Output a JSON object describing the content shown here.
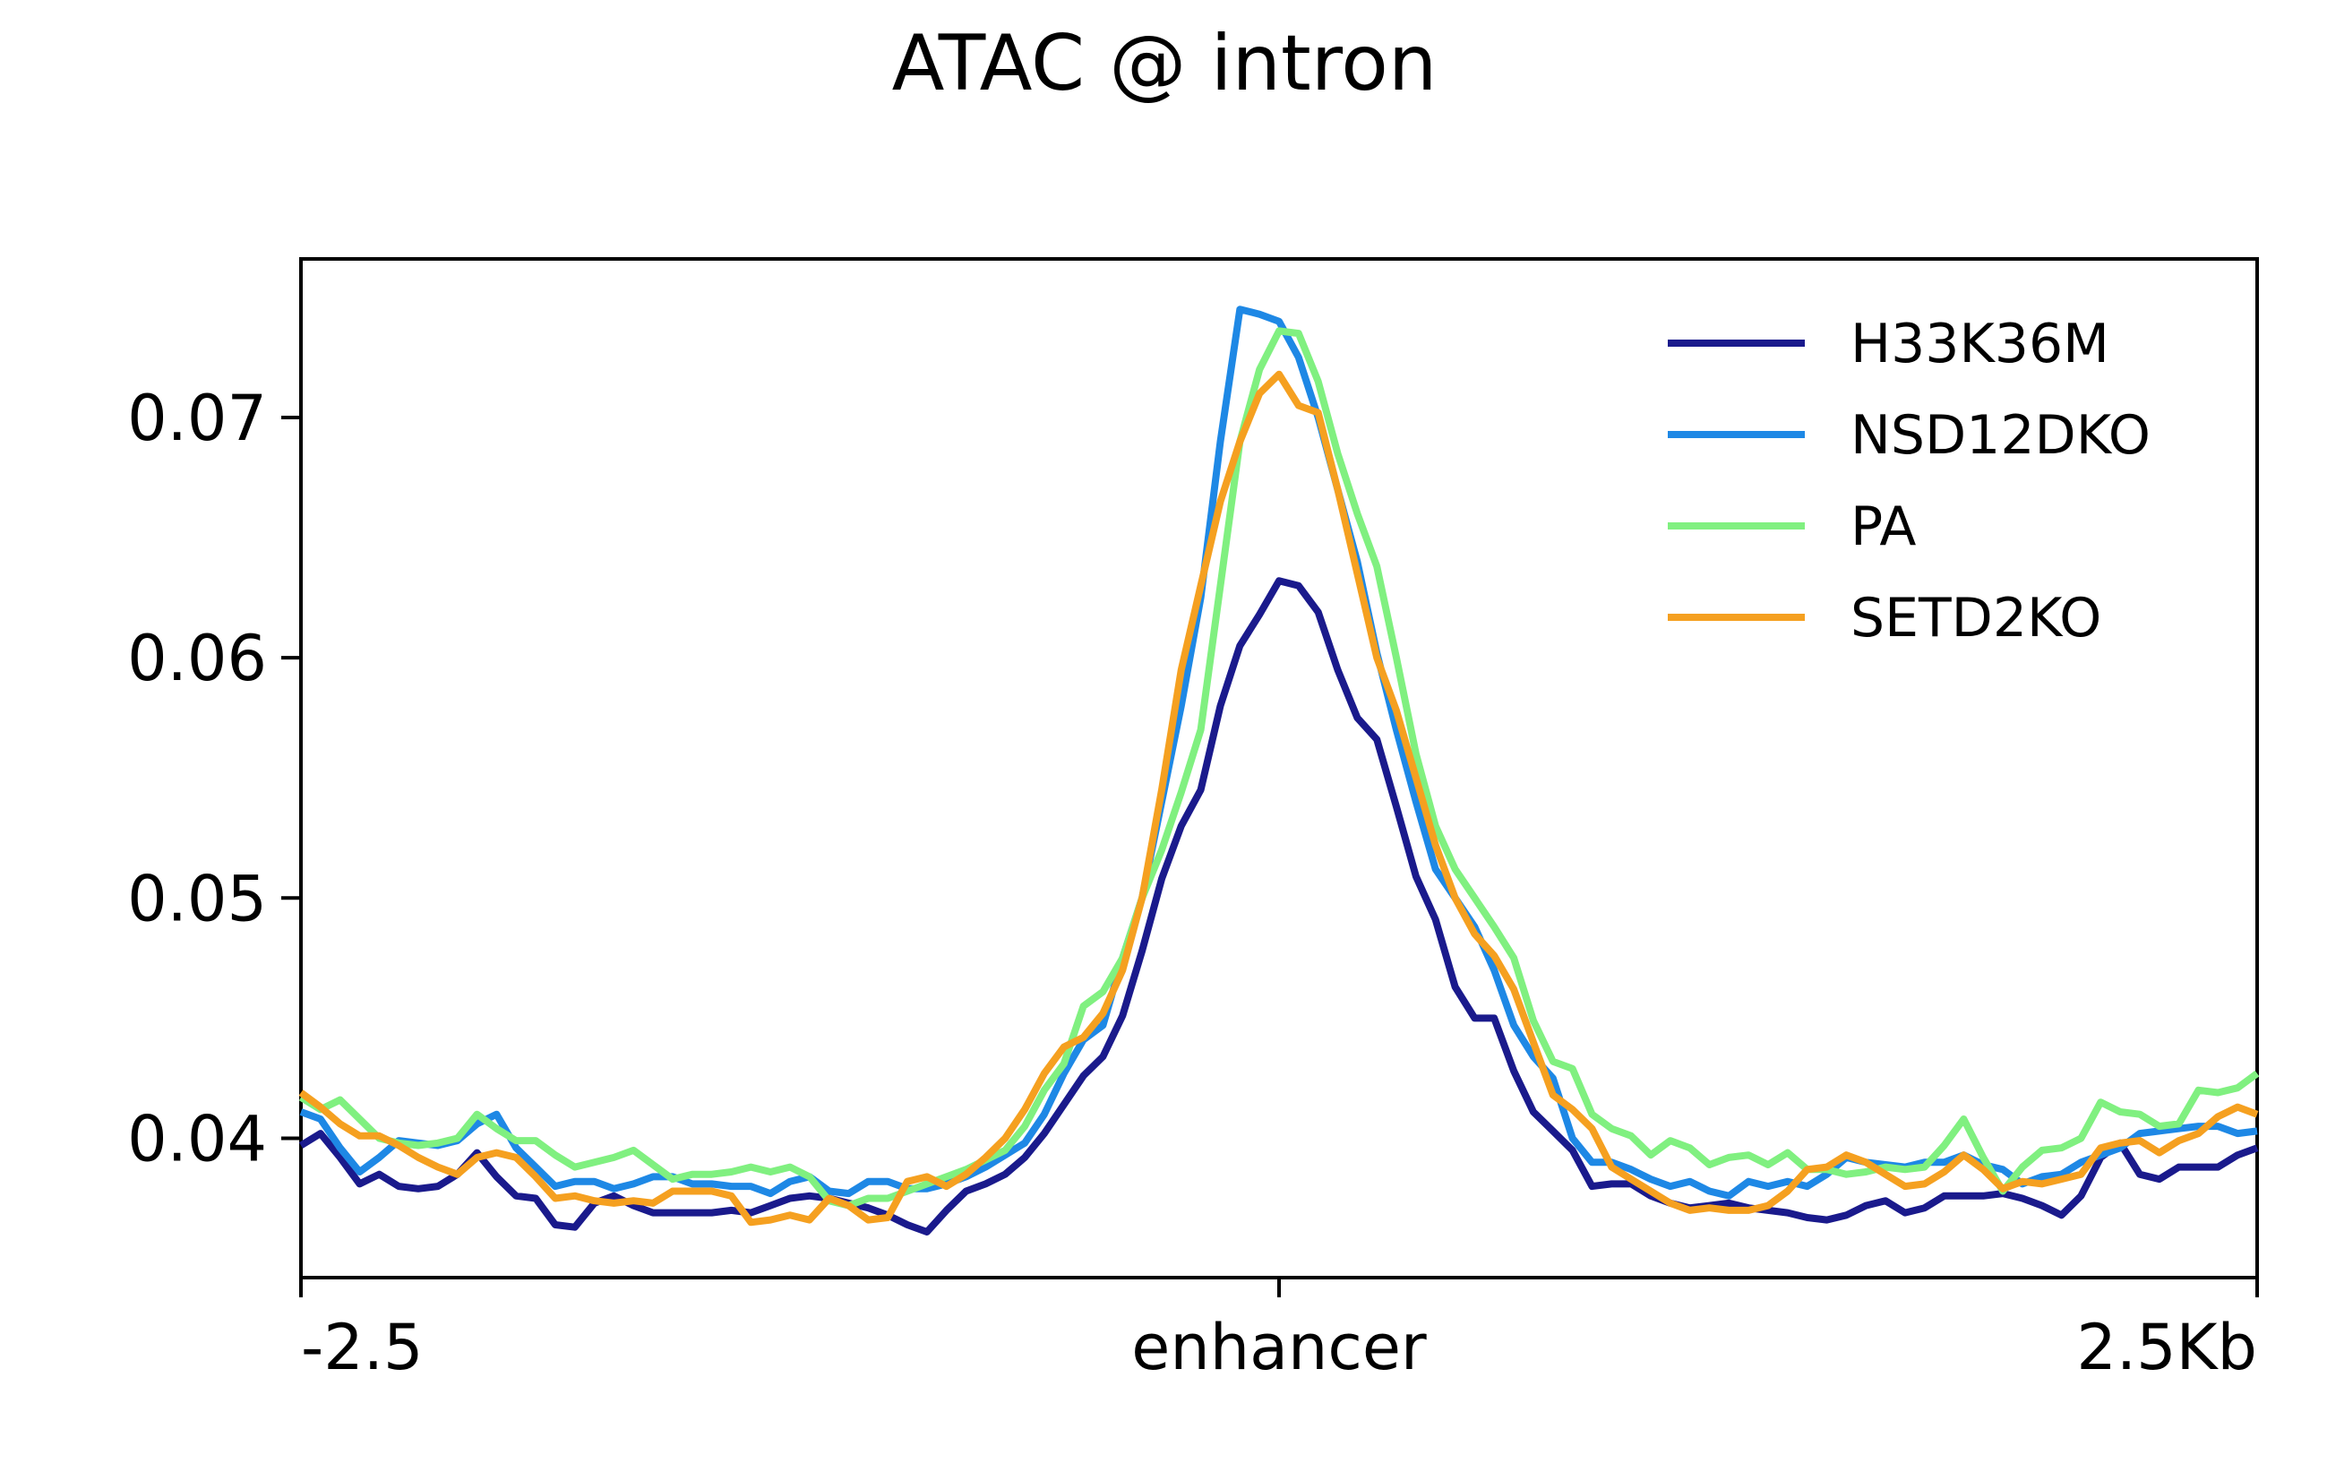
{
  "chart_data": {
    "type": "line",
    "title": "ATAC @ intron",
    "xlabel": "",
    "ylabel": "",
    "x_ticks": [
      {
        "value": -2500,
        "label": "-2.5"
      },
      {
        "value": 0,
        "label": "enhancer"
      },
      {
        "value": 2500,
        "label": "2.5Kb"
      }
    ],
    "xlim": [
      -2500,
      2500
    ],
    "ylim": [
      0.0342,
      0.0766
    ],
    "y_ticks": [
      0.04,
      0.05,
      0.06,
      0.07
    ],
    "y_tick_labels": [
      "0.04",
      "0.05",
      "0.06",
      "0.07"
    ],
    "grid": false,
    "legend_position": "top-right",
    "x_step": 50,
    "series": [
      {
        "name": "H33K36M",
        "color": "#1a1a8c",
        "values": [
          0.0397,
          0.0402,
          0.0392,
          0.0381,
          0.0385,
          0.038,
          0.0379,
          0.038,
          0.0385,
          0.0394,
          0.0384,
          0.0376,
          0.0375,
          0.0364,
          0.0363,
          0.0373,
          0.0376,
          0.0372,
          0.0369,
          0.0369,
          0.0369,
          0.0369,
          0.037,
          0.0369,
          0.0372,
          0.0375,
          0.0376,
          0.0375,
          0.0373,
          0.0371,
          0.0368,
          0.0364,
          0.0361,
          0.037,
          0.0378,
          0.0381,
          0.0385,
          0.0392,
          0.0402,
          0.0414,
          0.0426,
          0.0434,
          0.0451,
          0.0478,
          0.0508,
          0.053,
          0.0545,
          0.058,
          0.0605,
          0.0618,
          0.0632,
          0.063,
          0.0619,
          0.0595,
          0.0575,
          0.0566,
          0.0538,
          0.0509,
          0.0491,
          0.0463,
          0.045,
          0.045,
          0.0428,
          0.0411,
          0.0403,
          0.0395,
          0.038,
          0.0381,
          0.0381,
          0.0376,
          0.0373,
          0.0371,
          0.0372,
          0.0373,
          0.0371,
          0.037,
          0.0369,
          0.0367,
          0.0366,
          0.0368,
          0.0372,
          0.0374,
          0.0369,
          0.0371,
          0.0376,
          0.0376,
          0.0376,
          0.0377,
          0.0375,
          0.0372,
          0.0368,
          0.0376,
          0.0392,
          0.0398,
          0.0385,
          0.0383,
          0.0388,
          0.0388,
          0.0388,
          0.0393,
          0.0396
        ]
      },
      {
        "name": "NSD12DKO",
        "color": "#1e88e5",
        "values": [
          0.0411,
          0.0408,
          0.0396,
          0.0386,
          0.0392,
          0.0399,
          0.0398,
          0.0397,
          0.0399,
          0.0406,
          0.041,
          0.0396,
          0.0388,
          0.038,
          0.0382,
          0.0382,
          0.0379,
          0.0381,
          0.0384,
          0.0384,
          0.0381,
          0.0381,
          0.038,
          0.038,
          0.0377,
          0.0382,
          0.0384,
          0.0378,
          0.0377,
          0.0382,
          0.0382,
          0.0379,
          0.0379,
          0.0381,
          0.0384,
          0.0388,
          0.0393,
          0.0398,
          0.041,
          0.0427,
          0.0441,
          0.0447,
          0.0475,
          0.05,
          0.054,
          0.058,
          0.0625,
          0.069,
          0.0745,
          0.0743,
          0.074,
          0.0725,
          0.07,
          0.067,
          0.064,
          0.0602,
          0.057,
          0.054,
          0.0512,
          0.05,
          0.0488,
          0.047,
          0.0447,
          0.0434,
          0.0425,
          0.04,
          0.039,
          0.039,
          0.0387,
          0.0383,
          0.038,
          0.0382,
          0.0378,
          0.0376,
          0.0382,
          0.038,
          0.0382,
          0.038,
          0.0385,
          0.0392,
          0.039,
          0.0389,
          0.0388,
          0.039,
          0.039,
          0.0393,
          0.0389,
          0.0387,
          0.0381,
          0.0384,
          0.0385,
          0.039,
          0.0393,
          0.0396,
          0.0402,
          0.0403,
          0.0404,
          0.0405,
          0.0405,
          0.0402,
          0.0403
        ]
      },
      {
        "name": "PA",
        "color": "#80f080",
        "values": [
          0.0417,
          0.0412,
          0.0416,
          0.0408,
          0.04,
          0.0398,
          0.0397,
          0.0398,
          0.04,
          0.041,
          0.0404,
          0.0399,
          0.0399,
          0.0393,
          0.0388,
          0.039,
          0.0392,
          0.0395,
          0.0389,
          0.0383,
          0.0385,
          0.0385,
          0.0386,
          0.0388,
          0.0386,
          0.0388,
          0.0384,
          0.0374,
          0.0372,
          0.0375,
          0.0375,
          0.0378,
          0.0381,
          0.0384,
          0.0387,
          0.0391,
          0.0395,
          0.0405,
          0.042,
          0.0431,
          0.0455,
          0.0461,
          0.0475,
          0.05,
          0.052,
          0.0544,
          0.057,
          0.063,
          0.069,
          0.072,
          0.0736,
          0.0735,
          0.0715,
          0.0685,
          0.066,
          0.0638,
          0.06,
          0.056,
          0.053,
          0.0512,
          0.05,
          0.0488,
          0.0475,
          0.0449,
          0.0432,
          0.0429,
          0.041,
          0.0404,
          0.0401,
          0.0393,
          0.0399,
          0.0396,
          0.0389,
          0.0392,
          0.0393,
          0.0389,
          0.0394,
          0.0387,
          0.0387,
          0.0385,
          0.0386,
          0.0388,
          0.0387,
          0.0388,
          0.0397,
          0.0408,
          0.0392,
          0.0378,
          0.0388,
          0.0395,
          0.0396,
          0.04,
          0.0415,
          0.0411,
          0.041,
          0.0405,
          0.0406,
          0.042,
          0.0419,
          0.0421,
          0.0427
        ]
      },
      {
        "name": "SETD2KO",
        "color": "#f5a020",
        "values": [
          0.0419,
          0.0413,
          0.0406,
          0.0401,
          0.0401,
          0.0397,
          0.0392,
          0.0388,
          0.0385,
          0.0392,
          0.0394,
          0.0392,
          0.0384,
          0.0375,
          0.0376,
          0.0374,
          0.0373,
          0.0374,
          0.0373,
          0.0378,
          0.0378,
          0.0378,
          0.0376,
          0.0365,
          0.0366,
          0.0368,
          0.0366,
          0.0375,
          0.0372,
          0.0366,
          0.0367,
          0.0382,
          0.0384,
          0.038,
          0.0385,
          0.0392,
          0.04,
          0.0412,
          0.0427,
          0.0438,
          0.0442,
          0.0452,
          0.047,
          0.05,
          0.0545,
          0.0595,
          0.063,
          0.0665,
          0.069,
          0.071,
          0.0718,
          0.0705,
          0.0702,
          0.067,
          0.0635,
          0.06,
          0.0578,
          0.055,
          0.0522,
          0.05,
          0.0485,
          0.0476,
          0.0462,
          0.044,
          0.0418,
          0.0412,
          0.0404,
          0.0388,
          0.0383,
          0.0378,
          0.0373,
          0.037,
          0.0371,
          0.037,
          0.037,
          0.0372,
          0.0378,
          0.0387,
          0.0388,
          0.0393,
          0.039,
          0.0385,
          0.038,
          0.0381,
          0.0386,
          0.0393,
          0.0387,
          0.0379,
          0.0382,
          0.0381,
          0.0383,
          0.0385,
          0.0396,
          0.0398,
          0.0399,
          0.0394,
          0.0399,
          0.0402,
          0.0409,
          0.0413,
          0.041
        ]
      }
    ]
  }
}
